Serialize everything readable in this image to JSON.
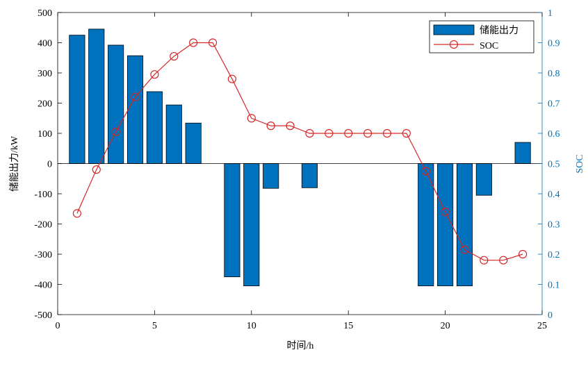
{
  "chart_data": {
    "type": "bar",
    "title": "",
    "xlabel": "时间/h",
    "ylabel_left": "储能出力/kW",
    "ylabel_right": "SOC",
    "xlim": [
      0,
      25
    ],
    "ylim_left": [
      -500,
      500
    ],
    "ylim_right": [
      0,
      1
    ],
    "x_ticks": [
      0,
      5,
      10,
      15,
      20,
      25
    ],
    "y_left_ticks": [
      -500,
      -400,
      -300,
      -200,
      -100,
      0,
      100,
      200,
      300,
      400,
      500
    ],
    "y_right_ticks": [
      0,
      0.1,
      0.2,
      0.3,
      0.4,
      0.5,
      0.6,
      0.7,
      0.8,
      0.9,
      1
    ],
    "x_tick_labels": [
      "0",
      "5",
      "10",
      "15",
      "20",
      "25"
    ],
    "y_left_tick_labels": [
      "-500",
      "-400",
      "-300",
      "-200",
      "-100",
      "0",
      "100",
      "200",
      "300",
      "400",
      "500"
    ],
    "y_right_tick_labels": [
      "0",
      "0.1",
      "0.2",
      "0.3",
      "0.4",
      "0.5",
      "0.6",
      "0.7",
      "0.8",
      "0.9",
      "1"
    ],
    "grid": false,
    "legend_position": "top-right",
    "x": [
      1,
      2,
      3,
      4,
      5,
      6,
      7,
      8,
      9,
      10,
      11,
      12,
      13,
      14,
      15,
      16,
      17,
      18,
      19,
      20,
      21,
      22,
      23,
      24
    ],
    "series": [
      {
        "name": "储能出力",
        "kind": "bar",
        "axis": "left",
        "color": "#0072BD",
        "values": [
          425,
          445,
          392,
          357,
          238,
          194,
          134,
          0,
          -375,
          -405,
          -82,
          0,
          -80,
          0,
          0,
          0,
          0,
          0,
          -405,
          -405,
          -405,
          -105,
          0,
          70
        ]
      },
      {
        "name": "SOC",
        "kind": "line",
        "axis": "right",
        "color": "#D62728",
        "values": [
          0.335,
          0.48,
          0.605,
          0.72,
          0.795,
          0.855,
          0.9,
          0.9,
          0.78,
          0.65,
          0.625,
          0.625,
          0.6,
          0.6,
          0.6,
          0.6,
          0.6,
          0.6,
          0.475,
          0.34,
          0.215,
          0.18,
          0.18,
          0.2
        ]
      }
    ],
    "colors": {
      "axis_left": "#000000",
      "axis_right": "#0072BD",
      "bar": "#0072BD",
      "line": "#D62728"
    }
  }
}
